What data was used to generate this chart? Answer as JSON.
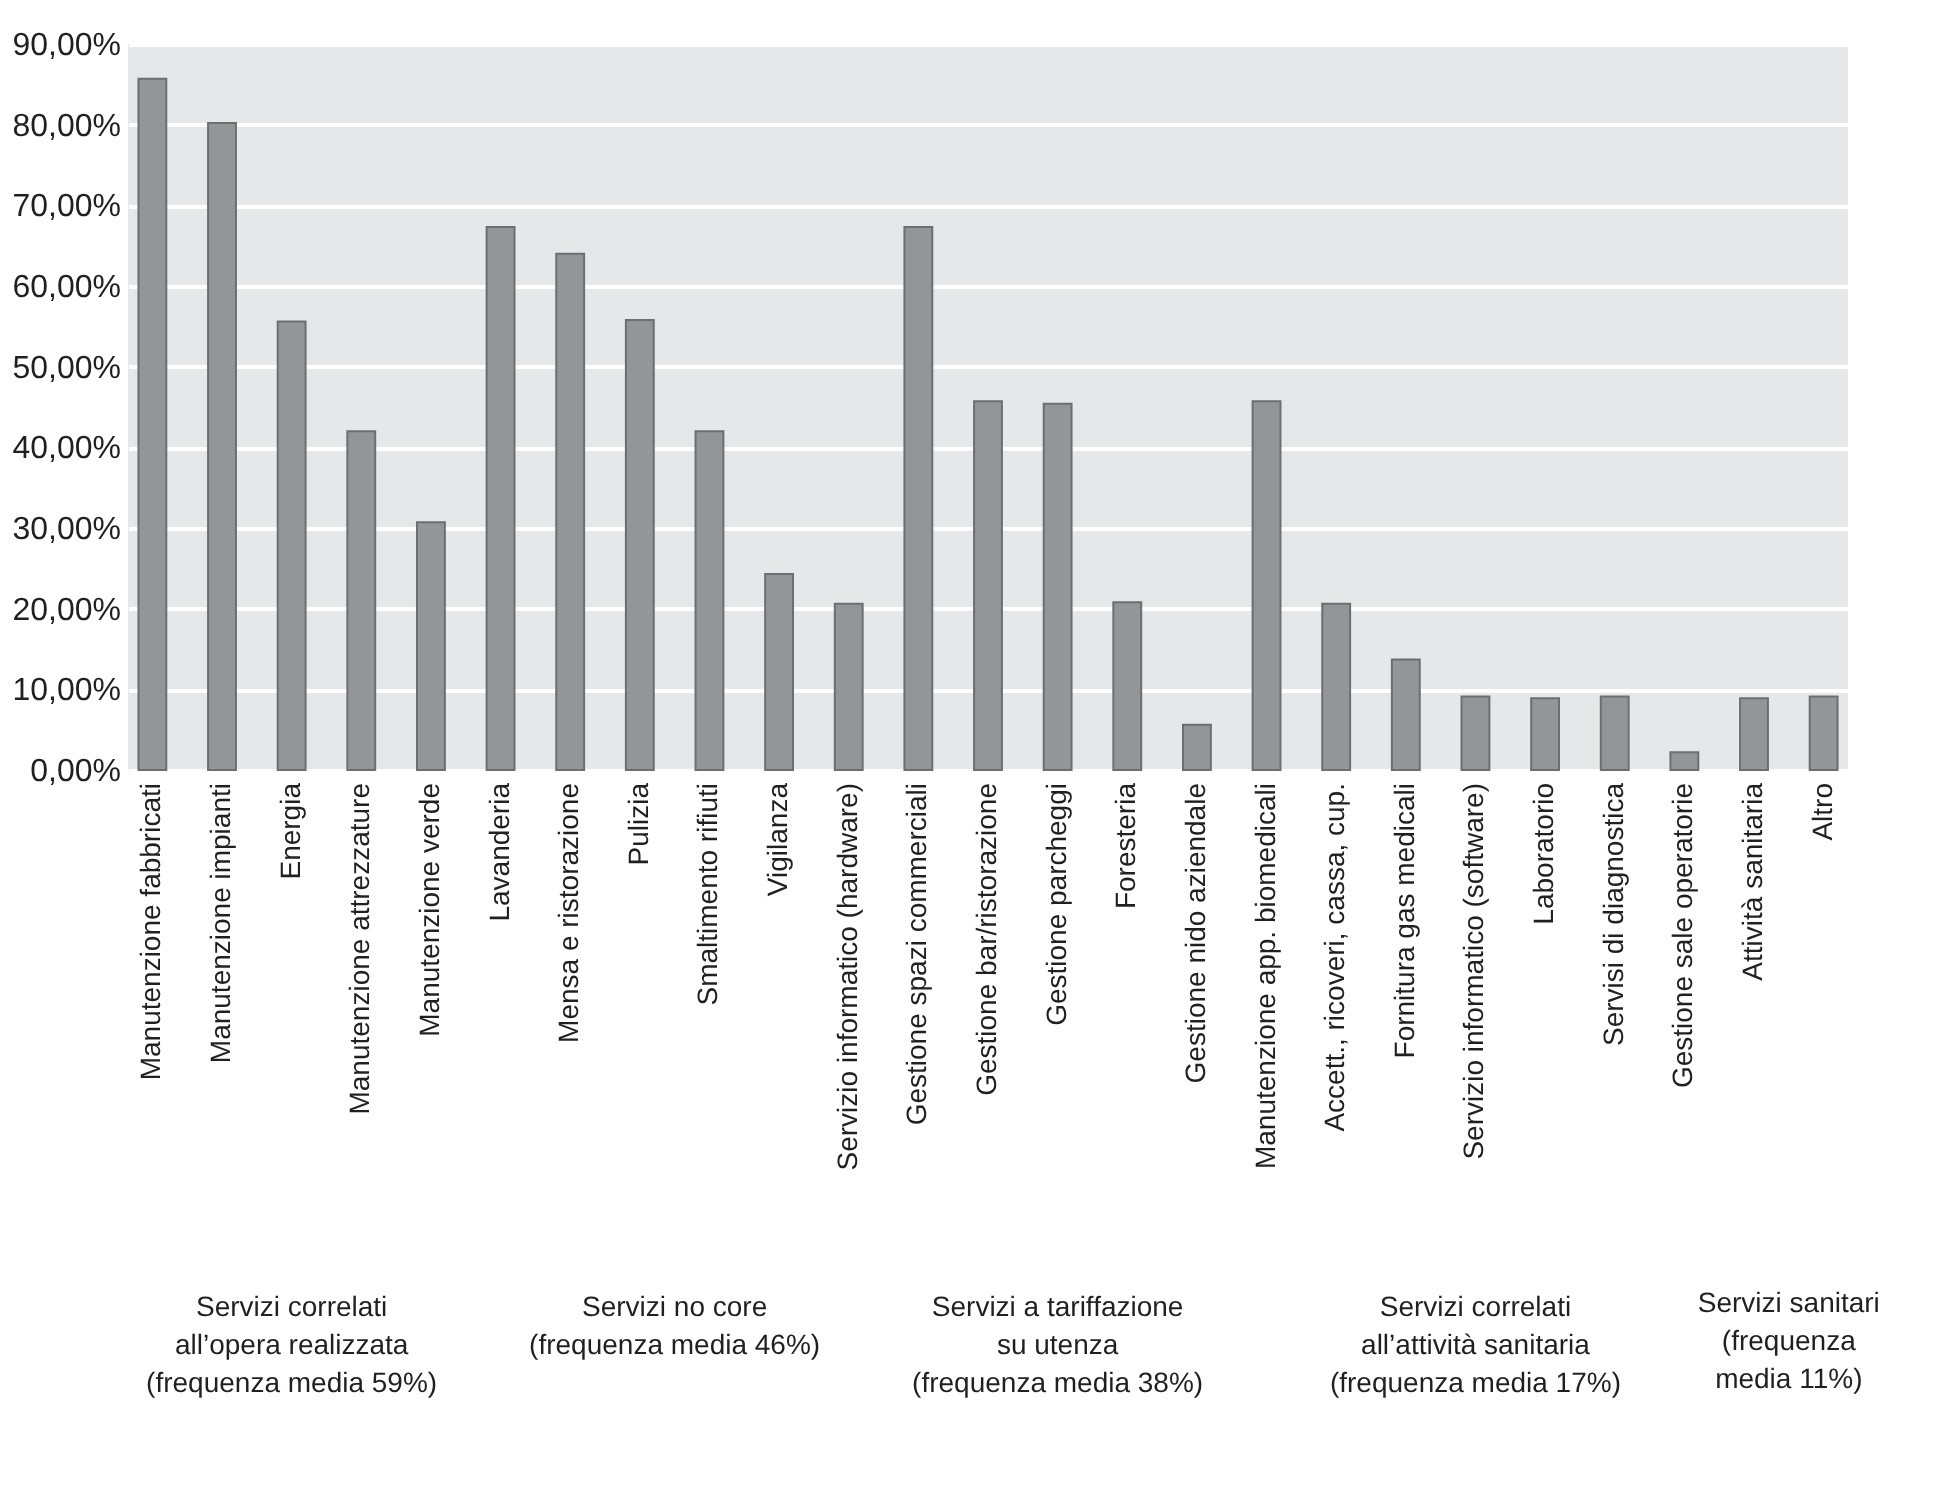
{
  "chart_data": {
    "type": "bar",
    "categories": [
      "Manutenzione fabbricati",
      "Manutenzione impianti",
      "Energia",
      "Manutenzione attrezzature",
      "Manutenzione verde",
      "Lavanderia",
      "Mensa e ristorazione",
      "Pulizia",
      "Smaltimento rifiuti",
      "Vigilanza",
      "Servizio informatico (hardware)",
      "Gestione spazi commerciali",
      "Gestione bar/ristorazione",
      "Gestione parcheggi",
      "Foresteria",
      "Gestione nido aziendale",
      "Manutenzione app. biomedicali",
      "Accett., ricoveri, cassa, cup.",
      "Fornitura gas medicali",
      "Servizio informatico (software)",
      "Laboratorio",
      "Servisi di diagnostica",
      "Gestione sale operatorie",
      "Attività sanitaria",
      "Altro"
    ],
    "values": [
      85.7,
      80.2,
      55.6,
      42.0,
      30.7,
      67.3,
      64.0,
      55.8,
      42.0,
      24.3,
      20.6,
      67.3,
      45.7,
      45.4,
      20.8,
      5.6,
      45.7,
      20.6,
      13.7,
      9.1,
      8.9,
      9.1,
      2.2,
      8.9,
      9.1
    ],
    "color": "#939598",
    "ylim": [
      0,
      90
    ],
    "yticks": [
      {
        "value": 0,
        "label": "0,00%"
      },
      {
        "value": 10,
        "label": "10,00%"
      },
      {
        "value": 20,
        "label": "20,00%"
      },
      {
        "value": 30,
        "label": "30,00%"
      },
      {
        "value": 40,
        "label": "40,00%"
      },
      {
        "value": 50,
        "label": "50,00%"
      },
      {
        "value": 60,
        "label": "60,00%"
      },
      {
        "value": 70,
        "label": "70,00%"
      },
      {
        "value": 80,
        "label": "80,00%"
      },
      {
        "value": 90,
        "label": "90,00%"
      }
    ],
    "grid": "y",
    "annotations": [
      "Servizi correlati\nall’opera realizzata\n(frequenza media 59%)",
      "Servizi no core\n(frequenza media 46%)",
      "Servizi a tariffazione\nsu utenza\n(frequenza media 38%)",
      "Servizi correlati\nall’attività sanitaria\n(frequenza media 17%)",
      "Servizi sanitari\n(frequenza\nmedia 11%)"
    ]
  }
}
